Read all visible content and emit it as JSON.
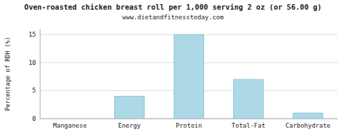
{
  "chart_data": {
    "type": "bar",
    "title": "Oven-roasted chicken breast roll per 1,000 serving 2 oz (or 56.00 g)",
    "subtitle": "www.dietandfitnesstoday.com",
    "ylabel": "Percentage of RDH (%)",
    "categories": [
      "Manganese",
      "Energy",
      "Protein",
      "Total-Fat",
      "Carbohydrate"
    ],
    "values": [
      0.0,
      4.0,
      15.0,
      7.0,
      1.0
    ],
    "color": "#add8e6",
    "ylim": [
      0,
      16
    ],
    "yticks": [
      0,
      5,
      10,
      15
    ],
    "grid": true
  }
}
